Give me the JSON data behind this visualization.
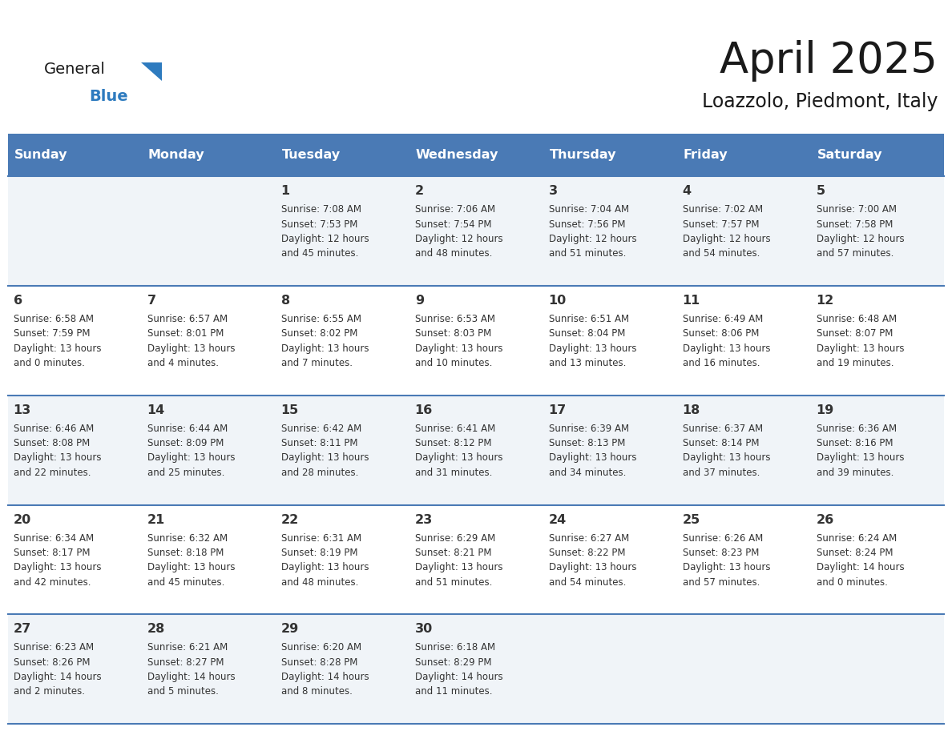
{
  "title": "April 2025",
  "subtitle": "Loazzolo, Piedmont, Italy",
  "header_color": "#4a7ab5",
  "header_text_color": "#ffffff",
  "day_names": [
    "Sunday",
    "Monday",
    "Tuesday",
    "Wednesday",
    "Thursday",
    "Friday",
    "Saturday"
  ],
  "bg_color": "#ffffff",
  "cell_bg_even": "#f0f4f8",
  "cell_bg_odd": "#ffffff",
  "divider_color": "#4a7ab5",
  "text_color": "#333333",
  "days": [
    {
      "day": 1,
      "col": 2,
      "row": 0,
      "sunrise": "7:08 AM",
      "sunset": "7:53 PM",
      "daylight": "12 hours and 45 minutes."
    },
    {
      "day": 2,
      "col": 3,
      "row": 0,
      "sunrise": "7:06 AM",
      "sunset": "7:54 PM",
      "daylight": "12 hours and 48 minutes."
    },
    {
      "day": 3,
      "col": 4,
      "row": 0,
      "sunrise": "7:04 AM",
      "sunset": "7:56 PM",
      "daylight": "12 hours and 51 minutes."
    },
    {
      "day": 4,
      "col": 5,
      "row": 0,
      "sunrise": "7:02 AM",
      "sunset": "7:57 PM",
      "daylight": "12 hours and 54 minutes."
    },
    {
      "day": 5,
      "col": 6,
      "row": 0,
      "sunrise": "7:00 AM",
      "sunset": "7:58 PM",
      "daylight": "12 hours and 57 minutes."
    },
    {
      "day": 6,
      "col": 0,
      "row": 1,
      "sunrise": "6:58 AM",
      "sunset": "7:59 PM",
      "daylight": "13 hours and 0 minutes."
    },
    {
      "day": 7,
      "col": 1,
      "row": 1,
      "sunrise": "6:57 AM",
      "sunset": "8:01 PM",
      "daylight": "13 hours and 4 minutes."
    },
    {
      "day": 8,
      "col": 2,
      "row": 1,
      "sunrise": "6:55 AM",
      "sunset": "8:02 PM",
      "daylight": "13 hours and 7 minutes."
    },
    {
      "day": 9,
      "col": 3,
      "row": 1,
      "sunrise": "6:53 AM",
      "sunset": "8:03 PM",
      "daylight": "13 hours and 10 minutes."
    },
    {
      "day": 10,
      "col": 4,
      "row": 1,
      "sunrise": "6:51 AM",
      "sunset": "8:04 PM",
      "daylight": "13 hours and 13 minutes."
    },
    {
      "day": 11,
      "col": 5,
      "row": 1,
      "sunrise": "6:49 AM",
      "sunset": "8:06 PM",
      "daylight": "13 hours and 16 minutes."
    },
    {
      "day": 12,
      "col": 6,
      "row": 1,
      "sunrise": "6:48 AM",
      "sunset": "8:07 PM",
      "daylight": "13 hours and 19 minutes."
    },
    {
      "day": 13,
      "col": 0,
      "row": 2,
      "sunrise": "6:46 AM",
      "sunset": "8:08 PM",
      "daylight": "13 hours and 22 minutes."
    },
    {
      "day": 14,
      "col": 1,
      "row": 2,
      "sunrise": "6:44 AM",
      "sunset": "8:09 PM",
      "daylight": "13 hours and 25 minutes."
    },
    {
      "day": 15,
      "col": 2,
      "row": 2,
      "sunrise": "6:42 AM",
      "sunset": "8:11 PM",
      "daylight": "13 hours and 28 minutes."
    },
    {
      "day": 16,
      "col": 3,
      "row": 2,
      "sunrise": "6:41 AM",
      "sunset": "8:12 PM",
      "daylight": "13 hours and 31 minutes."
    },
    {
      "day": 17,
      "col": 4,
      "row": 2,
      "sunrise": "6:39 AM",
      "sunset": "8:13 PM",
      "daylight": "13 hours and 34 minutes."
    },
    {
      "day": 18,
      "col": 5,
      "row": 2,
      "sunrise": "6:37 AM",
      "sunset": "8:14 PM",
      "daylight": "13 hours and 37 minutes."
    },
    {
      "day": 19,
      "col": 6,
      "row": 2,
      "sunrise": "6:36 AM",
      "sunset": "8:16 PM",
      "daylight": "13 hours and 39 minutes."
    },
    {
      "day": 20,
      "col": 0,
      "row": 3,
      "sunrise": "6:34 AM",
      "sunset": "8:17 PM",
      "daylight": "13 hours and 42 minutes."
    },
    {
      "day": 21,
      "col": 1,
      "row": 3,
      "sunrise": "6:32 AM",
      "sunset": "8:18 PM",
      "daylight": "13 hours and 45 minutes."
    },
    {
      "day": 22,
      "col": 2,
      "row": 3,
      "sunrise": "6:31 AM",
      "sunset": "8:19 PM",
      "daylight": "13 hours and 48 minutes."
    },
    {
      "day": 23,
      "col": 3,
      "row": 3,
      "sunrise": "6:29 AM",
      "sunset": "8:21 PM",
      "daylight": "13 hours and 51 minutes."
    },
    {
      "day": 24,
      "col": 4,
      "row": 3,
      "sunrise": "6:27 AM",
      "sunset": "8:22 PM",
      "daylight": "13 hours and 54 minutes."
    },
    {
      "day": 25,
      "col": 5,
      "row": 3,
      "sunrise": "6:26 AM",
      "sunset": "8:23 PM",
      "daylight": "13 hours and 57 minutes."
    },
    {
      "day": 26,
      "col": 6,
      "row": 3,
      "sunrise": "6:24 AM",
      "sunset": "8:24 PM",
      "daylight": "14 hours and 0 minutes."
    },
    {
      "day": 27,
      "col": 0,
      "row": 4,
      "sunrise": "6:23 AM",
      "sunset": "8:26 PM",
      "daylight": "14 hours and 2 minutes."
    },
    {
      "day": 28,
      "col": 1,
      "row": 4,
      "sunrise": "6:21 AM",
      "sunset": "8:27 PM",
      "daylight": "14 hours and 5 minutes."
    },
    {
      "day": 29,
      "col": 2,
      "row": 4,
      "sunrise": "6:20 AM",
      "sunset": "8:28 PM",
      "daylight": "14 hours and 8 minutes."
    },
    {
      "day": 30,
      "col": 3,
      "row": 4,
      "sunrise": "6:18 AM",
      "sunset": "8:29 PM",
      "daylight": "14 hours and 11 minutes."
    }
  ],
  "logo_general_color": "#1a1a1a",
  "logo_blue_color": "#2e7bbf",
  "logo_triangle_color": "#2e7bbf",
  "title_color": "#1a1a1a",
  "subtitle_color": "#1a1a1a"
}
